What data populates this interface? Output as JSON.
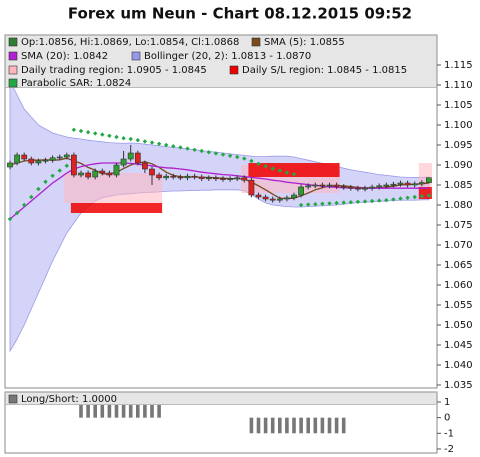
{
  "title": "Forex um Neun - Chart 08.12.2015 09:52",
  "chart_data": [
    {
      "type": "candlestick",
      "ohlc_label": "Op:1.0856, Hi:1.0869, Lo:1.0854, Cl:1.0868",
      "ohlc_color": "#2e7d32",
      "up_color": "#2e9e2e",
      "down_color": "#dd2222",
      "open": [
        1.0895,
        1.0905,
        1.0925,
        1.0915,
        1.0905,
        1.091,
        1.0912,
        1.0918,
        1.092,
        1.0925,
        1.0875,
        1.088,
        1.087,
        1.0885,
        1.088,
        1.0875,
        1.09,
        1.0915,
        1.093,
        1.0905,
        1.089,
        1.0875,
        1.0868,
        1.0872,
        1.087,
        1.0868,
        1.0872,
        1.087,
        1.0866,
        1.0868,
        1.0866,
        1.0864,
        1.0866,
        1.0868,
        1.0862,
        1.0825,
        1.082,
        1.0815,
        1.0812,
        1.0815,
        1.0818,
        1.0825,
        1.0845,
        1.0848,
        1.085,
        1.0848,
        1.085,
        1.0846,
        1.0844,
        1.0842,
        1.084,
        1.0842,
        1.0845,
        1.0848,
        1.085,
        1.0852,
        1.0855,
        1.085,
        1.0853,
        1.0856
      ],
      "high": [
        1.0911,
        1.0931,
        1.0931,
        1.0921,
        1.0916,
        1.0918,
        1.0924,
        1.0926,
        1.0931,
        1.0931,
        1.0886,
        1.0886,
        1.0891,
        1.0891,
        1.0886,
        1.0906,
        1.0935,
        1.095,
        1.0936,
        1.0911,
        1.0896,
        1.0881,
        1.0878,
        1.0878,
        1.0876,
        1.0878,
        1.0878,
        1.0876,
        1.0874,
        1.0874,
        1.0872,
        1.0872,
        1.0874,
        1.0874,
        1.0868,
        1.0831,
        1.0826,
        1.0821,
        1.0821,
        1.0824,
        1.0831,
        1.0851,
        1.0854,
        1.0856,
        1.0856,
        1.0856,
        1.0856,
        1.0852,
        1.085,
        1.0848,
        1.0848,
        1.0851,
        1.0854,
        1.0856,
        1.0858,
        1.0861,
        1.0861,
        1.0859,
        1.0862,
        1.0869
      ],
      "low": [
        1.0889,
        1.0899,
        1.0909,
        1.0899,
        1.0899,
        1.0904,
        1.0906,
        1.0912,
        1.0914,
        1.0869,
        1.0869,
        1.0864,
        1.0864,
        1.0874,
        1.0869,
        1.0869,
        1.0894,
        1.0909,
        1.0899,
        1.088,
        1.085,
        1.0862,
        1.0862,
        1.0864,
        1.0862,
        1.0862,
        1.0864,
        1.086,
        1.086,
        1.086,
        1.0858,
        1.0858,
        1.086,
        1.0856,
        1.0819,
        1.0814,
        1.0809,
        1.0806,
        1.0806,
        1.0809,
        1.0812,
        1.0819,
        1.0839,
        1.0842,
        1.0842,
        1.0842,
        1.084,
        1.0838,
        1.0836,
        1.0834,
        1.0834,
        1.0836,
        1.0839,
        1.0842,
        1.0844,
        1.0846,
        1.0844,
        1.0844,
        1.0847,
        1.0854
      ],
      "close": [
        1.0905,
        1.0925,
        1.0915,
        1.0905,
        1.091,
        1.0912,
        1.0918,
        1.092,
        1.0925,
        1.0875,
        1.088,
        1.087,
        1.0885,
        1.088,
        1.0875,
        1.09,
        1.0915,
        1.093,
        1.0905,
        1.089,
        1.0875,
        1.0868,
        1.0872,
        1.087,
        1.0868,
        1.0872,
        1.087,
        1.0866,
        1.0868,
        1.0866,
        1.0864,
        1.0866,
        1.0868,
        1.0862,
        1.0825,
        1.082,
        1.0815,
        1.0812,
        1.0815,
        1.0818,
        1.0825,
        1.0845,
        1.0848,
        1.085,
        1.0848,
        1.085,
        1.0846,
        1.0844,
        1.0842,
        1.084,
        1.0842,
        1.0845,
        1.0848,
        1.085,
        1.0852,
        1.0855,
        1.085,
        1.0853,
        1.0856,
        1.0868
      ],
      "bands": {
        "name": "Bollinger (20, 2): 1.0813 - 1.0870",
        "color": "#b8b8f4",
        "edge": "#9a9ae8",
        "upper": [
          1.111,
          1.1075,
          1.104,
          1.102,
          1.1,
          1.099,
          1.098,
          1.0975,
          1.097,
          1.0967,
          1.0965,
          1.0962,
          1.096,
          1.0958,
          1.0956,
          1.0955,
          1.0954,
          1.0955,
          1.0954,
          1.0952,
          1.095,
          1.0948,
          1.0946,
          1.0944,
          1.0942,
          1.094,
          1.0938,
          1.0936,
          1.0934,
          1.0932,
          1.093,
          1.0928,
          1.0926,
          1.0924,
          1.0922,
          1.0921,
          1.0921,
          1.0922,
          1.0922,
          1.0922,
          1.092,
          1.0916,
          1.0912,
          1.0908,
          1.0904,
          1.09,
          1.0896,
          1.0892,
          1.0888,
          1.0885,
          1.0882,
          1.0879,
          1.0876,
          1.0874,
          1.0872,
          1.087,
          1.0869,
          1.0869,
          1.0869,
          1.087
        ],
        "lower": [
          1.0435,
          1.0465,
          1.05,
          1.054,
          1.058,
          1.062,
          1.066,
          1.0695,
          1.073,
          1.0755,
          1.078,
          1.0795,
          1.081,
          1.0818,
          1.0822,
          1.0825,
          1.0827,
          1.0828,
          1.083,
          1.0831,
          1.0832,
          1.0833,
          1.0834,
          1.0835,
          1.0835,
          1.0836,
          1.0836,
          1.0837,
          1.0837,
          1.0838,
          1.0838,
          1.0838,
          1.0838,
          1.0836,
          1.0826,
          1.0815,
          1.0805,
          1.08,
          1.0798,
          1.0796,
          1.0795,
          1.0795,
          1.0796,
          1.0797,
          1.0798,
          1.0799,
          1.08,
          1.0802,
          1.0804,
          1.0806,
          1.0807,
          1.0808,
          1.0809,
          1.081,
          1.0811,
          1.0812,
          1.0812,
          1.0812,
          1.0813,
          1.0813
        ]
      },
      "regions": [
        {
          "name": "Daily trading region: 1.0905 - 1.0845",
          "color": "#ffb6c1",
          "items": [
            {
              "from": 8,
              "to": 21,
              "high": 1.088,
              "low": 1.0805
            },
            {
              "from": 33,
              "to": 46,
              "high": 1.09,
              "low": 1.083
            },
            {
              "from": 58,
              "to": 59,
              "high": 1.0905,
              "low": 1.0845
            }
          ]
        },
        {
          "name": "Daily S/L region: 1.0845 - 1.0815",
          "color": "#ee0000",
          "items": [
            {
              "from": 9,
              "to": 21,
              "high": 1.0805,
              "low": 1.078
            },
            {
              "from": 34,
              "to": 46,
              "high": 1.0905,
              "low": 1.087
            },
            {
              "from": 58,
              "to": 59,
              "high": 1.0845,
              "low": 1.0815
            }
          ]
        }
      ],
      "lines": [
        {
          "name": "SMA (5): 1.0855",
          "color": "#7a4a1e",
          "values": [
            1.09,
            1.0905,
            1.091,
            1.0912,
            1.0912,
            1.0913,
            1.0912,
            1.0913,
            1.0917,
            1.091,
            1.0904,
            1.0894,
            1.0887,
            1.0878,
            1.0878,
            1.0882,
            1.0891,
            1.09,
            1.0905,
            1.0908,
            1.0903,
            1.0894,
            1.0882,
            1.0874,
            1.0871,
            1.087,
            1.087,
            1.0869,
            1.0869,
            1.0868,
            1.0867,
            1.0866,
            1.0866,
            1.0865,
            1.0857,
            1.0848,
            1.0838,
            1.0827,
            1.0817,
            1.0816,
            1.0817,
            1.0823,
            1.083,
            1.0838,
            1.0843,
            1.0848,
            1.0848,
            1.0848,
            1.0846,
            1.0844,
            1.0843,
            1.0843,
            1.0843,
            1.0845,
            1.0847,
            1.085,
            1.0851,
            1.0852,
            1.0853,
            1.0855
          ]
        },
        {
          "name": "SMA (20): 1.0842",
          "color": "#b020d0",
          "values": [
            1.0765,
            1.078,
            1.0795,
            1.081,
            1.0825,
            1.084,
            1.0855,
            1.0867,
            1.088,
            1.089,
            1.0896,
            1.09,
            1.0903,
            1.0905,
            1.0905,
            1.0905,
            1.0905,
            1.0904,
            1.0902,
            1.09,
            1.0898,
            1.0895,
            1.0893,
            1.0892,
            1.089,
            1.0888,
            1.0885,
            1.0882,
            1.088,
            1.0878,
            1.0876,
            1.0875,
            1.0873,
            1.0871,
            1.0869,
            1.0867,
            1.0865,
            1.0862,
            1.086,
            1.0857,
            1.0855,
            1.0853,
            1.0851,
            1.0849,
            1.0847,
            1.0845,
            1.0844,
            1.0843,
            1.0843,
            1.0842,
            1.0842,
            1.0842,
            1.0842,
            1.0842,
            1.0842,
            1.0842,
            1.0842,
            1.0842,
            1.0842,
            1.0842
          ]
        }
      ],
      "sar": {
        "name": "Parabolic SAR: 1.0824",
        "color": "#22a844",
        "values": [
          1.0765,
          1.078,
          1.08,
          1.082,
          1.084,
          1.0858,
          1.0873,
          1.0886,
          1.0898,
          1.0988,
          1.0985,
          1.0982,
          1.0979,
          1.0976,
          1.0973,
          1.097,
          1.0967,
          1.0965,
          1.0962,
          1.0959,
          1.0956,
          1.0953,
          1.095,
          1.0947,
          1.0944,
          1.0941,
          1.0938,
          1.0935,
          1.0932,
          1.0929,
          1.0926,
          1.0923,
          1.092,
          1.0916,
          1.091,
          1.0903,
          1.0897,
          1.0891,
          1.0886,
          1.0881,
          1.0877,
          1.08,
          1.0801,
          1.0802,
          1.0803,
          1.0804,
          1.0805,
          1.0806,
          1.0807,
          1.0808,
          1.0809,
          1.081,
          1.0811,
          1.0812,
          1.0814,
          1.0816,
          1.0818,
          1.082,
          1.0822,
          1.0824
        ]
      },
      "ylim": [
        1.03425,
        1.1225
      ],
      "yticks": [
        1.035,
        {
          "value": 1.04,
          "label": "1.040"
        },
        1.045,
        {
          "value": 1.05,
          "label": "1.050"
        },
        1.055,
        {
          "value": 1.06,
          "label": "1.060"
        },
        1.065,
        {
          "value": 1.07,
          "label": "1.070"
        },
        1.075,
        {
          "value": 1.08,
          "label": "1.080"
        },
        1.085,
        {
          "value": 1.09,
          "label": "1.090"
        },
        1.095,
        {
          "value": 1.1,
          "label": "1.100"
        },
        1.105,
        {
          "value": 1.11,
          "label": "1.110"
        },
        1.115
      ]
    },
    {
      "type": "bar",
      "series": [
        {
          "name": "Long/Short: 1.0000",
          "color": "#777777",
          "values": [
            null,
            null,
            null,
            null,
            null,
            null,
            null,
            null,
            null,
            null,
            1,
            1,
            1,
            1,
            1,
            1,
            1,
            1,
            1,
            1,
            1,
            1,
            null,
            null,
            null,
            null,
            null,
            null,
            null,
            null,
            null,
            null,
            null,
            null,
            -1,
            -1,
            -1,
            -1,
            -1,
            -1,
            -1,
            -1,
            -1,
            -1,
            -1,
            -1,
            -1,
            -1,
            null,
            null,
            null,
            null,
            null,
            null,
            null,
            null,
            null,
            null,
            null,
            null
          ]
        }
      ],
      "ylim": [
        -2.26,
        1.64
      ],
      "yticks": [
        1,
        0,
        -1,
        -2
      ]
    }
  ]
}
